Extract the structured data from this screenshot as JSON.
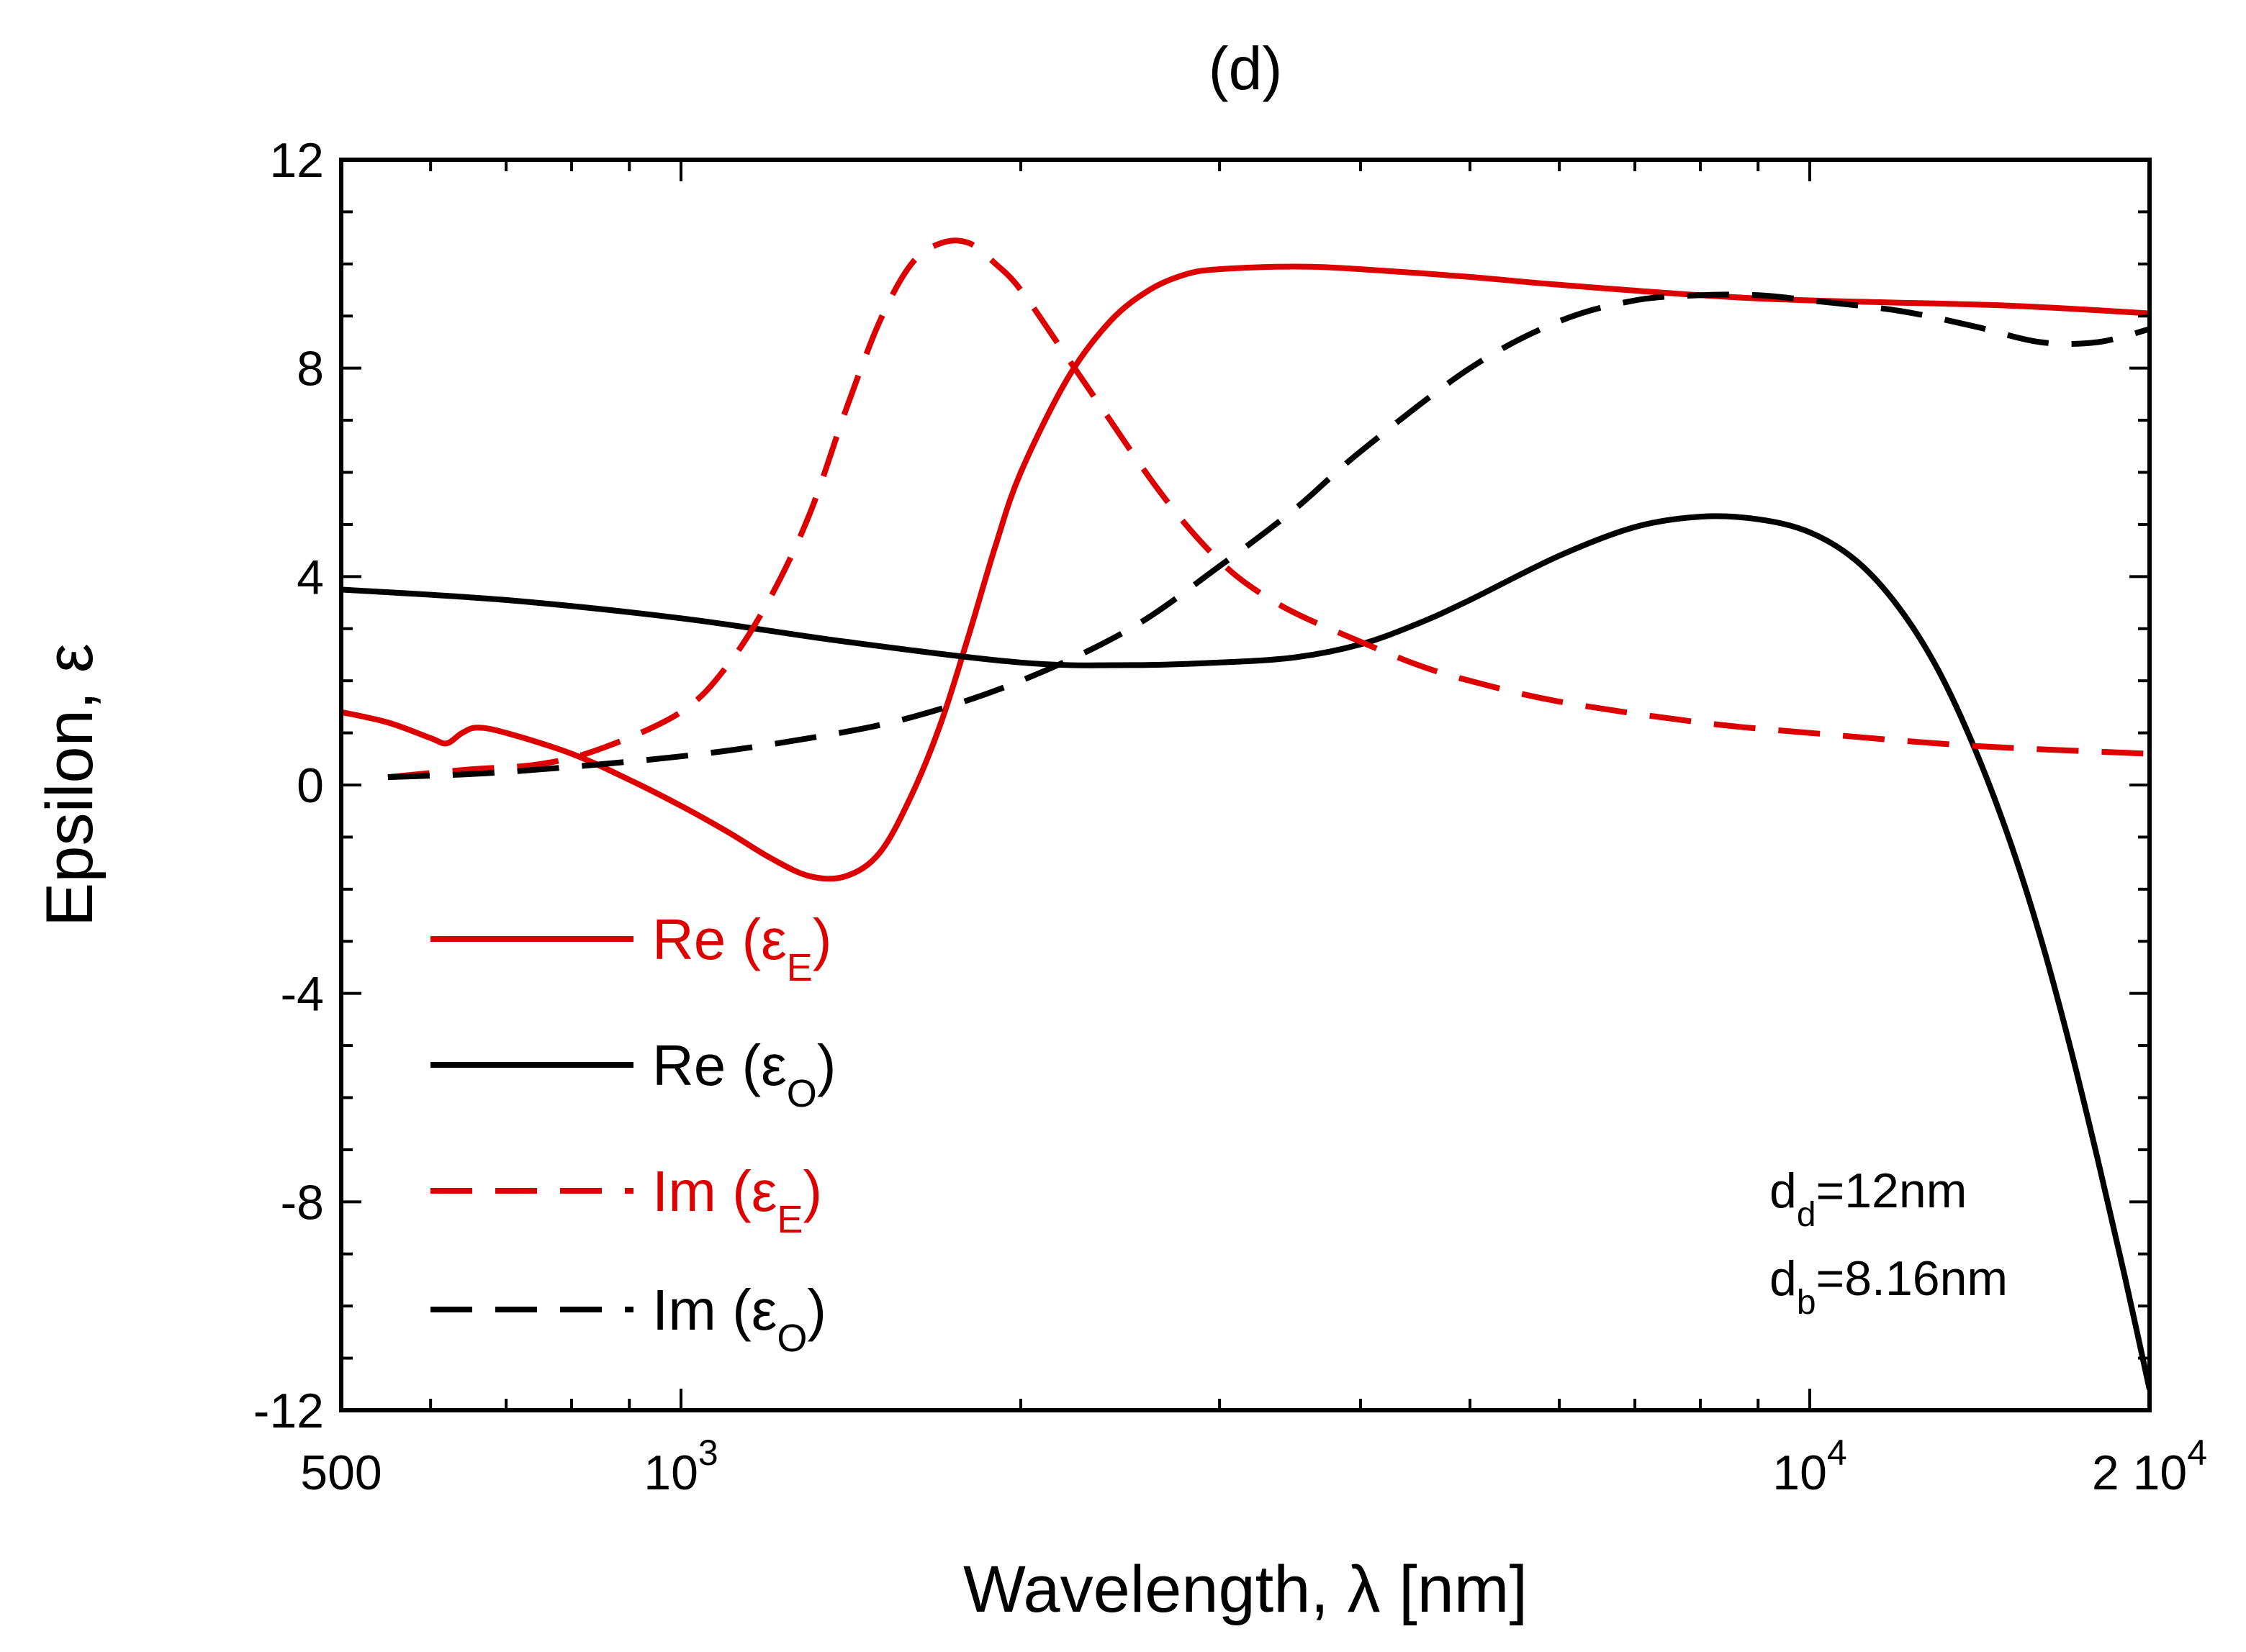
{
  "chart_data": {
    "type": "line",
    "title": "(d)",
    "xlabel": "Wavelength, λ [nm]",
    "ylabel": "Epsilon, ε",
    "xscale": "log",
    "xlim": [
      500,
      20000
    ],
    "ylim": [
      -12,
      12
    ],
    "xticks": [
      {
        "value": 500,
        "base": "500",
        "exp": ""
      },
      {
        "value": 1000,
        "base": "10",
        "exp": "3"
      },
      {
        "value": 10000,
        "base": "10",
        "exp": "4"
      },
      {
        "value": 20000,
        "base": "2 10",
        "exp": "4"
      }
    ],
    "yticks": [
      {
        "value": 12,
        "label": "12"
      },
      {
        "value": 8,
        "label": "8"
      },
      {
        "value": 4,
        "label": "4"
      },
      {
        "value": 0,
        "label": "0"
      },
      {
        "value": -4,
        "label": "-4"
      },
      {
        "value": -8,
        "label": "-8"
      },
      {
        "value": -12,
        "label": "-12"
      }
    ],
    "grid": false,
    "legend_position": "lower-left",
    "series": [
      {
        "name": "Re (εE)",
        "legend_main": "Re (ε",
        "legend_sub": "E",
        "legend_close": ")",
        "color": "#dd0000",
        "style": "solid",
        "x": [
          500,
          550,
          600,
          620,
          640,
          660,
          700,
          800,
          900,
          1000,
          1100,
          1200,
          1300,
          1400,
          1500,
          1600,
          1700,
          1800,
          1900,
          2000,
          2200,
          2400,
          2600,
          2800,
          3000,
          3500,
          4000,
          5000,
          6000,
          8000,
          10000,
          15000,
          20000
        ],
        "y": [
          1.4,
          1.2,
          0.9,
          0.8,
          1.0,
          1.1,
          1.0,
          0.6,
          0.1,
          -0.4,
          -0.9,
          -1.4,
          -1.75,
          -1.75,
          -1.3,
          -0.2,
          1.2,
          2.9,
          4.6,
          6.0,
          7.8,
          8.9,
          9.5,
          9.8,
          9.9,
          9.95,
          9.9,
          9.75,
          9.6,
          9.4,
          9.3,
          9.2,
          9.05
        ]
      },
      {
        "name": "Re (εO)",
        "legend_main": "Re (ε",
        "legend_sub": "O",
        "legend_close": ")",
        "color": "#000000",
        "style": "solid",
        "x": [
          500,
          700,
          1000,
          1400,
          2000,
          2500,
          3000,
          3500,
          4000,
          4500,
          5000,
          6000,
          7000,
          8000,
          9000,
          10000,
          11000,
          12000,
          13000,
          14000,
          15000,
          16000,
          17000,
          18000,
          19000,
          20000
        ],
        "y": [
          3.75,
          3.55,
          3.2,
          2.75,
          2.35,
          2.3,
          2.35,
          2.45,
          2.7,
          3.1,
          3.55,
          4.4,
          4.95,
          5.15,
          5.1,
          4.85,
          4.3,
          3.4,
          2.2,
          0.7,
          -1.0,
          -2.9,
          -5.0,
          -7.2,
          -9.4,
          -11.6
        ]
      },
      {
        "name": "Im (εE)",
        "legend_main": "Im (ε",
        "legend_sub": "E",
        "legend_close": ")",
        "color": "#dd0000",
        "style": "dashed",
        "x": [
          550,
          650,
          750,
          850,
          1000,
          1100,
          1200,
          1300,
          1400,
          1500,
          1600,
          1700,
          1800,
          1900,
          2000,
          2200,
          2400,
          2600,
          2800,
          3000,
          3200,
          3500,
          4000,
          4500,
          5000,
          6000,
          8000,
          10000,
          14000,
          20000
        ],
        "y": [
          0.15,
          0.3,
          0.4,
          0.7,
          1.4,
          2.3,
          3.6,
          5.2,
          7.2,
          8.9,
          10.0,
          10.4,
          10.4,
          10.0,
          9.5,
          8.2,
          7.0,
          5.9,
          5.0,
          4.3,
          3.8,
          3.3,
          2.75,
          2.3,
          2.0,
          1.6,
          1.2,
          1.0,
          0.75,
          0.6
        ]
      },
      {
        "name": "Im (εO)",
        "legend_main": "Im (ε",
        "legend_sub": "O",
        "legend_close": ")",
        "color": "#000000",
        "style": "dashed",
        "x": [
          550,
          700,
          1000,
          1300,
          1600,
          2000,
          2500,
          3000,
          3500,
          4000,
          5000,
          6000,
          7000,
          8000,
          9000,
          10000,
          12000,
          14000,
          16000,
          18000,
          20000
        ],
        "y": [
          0.15,
          0.25,
          0.55,
          0.9,
          1.3,
          2.0,
          3.0,
          4.2,
          5.3,
          6.4,
          8.0,
          8.9,
          9.3,
          9.4,
          9.4,
          9.3,
          9.1,
          8.8,
          8.5,
          8.5,
          8.75
        ]
      }
    ],
    "annotations": [
      {
        "main": "d",
        "sub": "d",
        "rest": "=12nm"
      },
      {
        "main": "d",
        "sub": "b",
        "rest": "=8.16nm"
      }
    ]
  }
}
